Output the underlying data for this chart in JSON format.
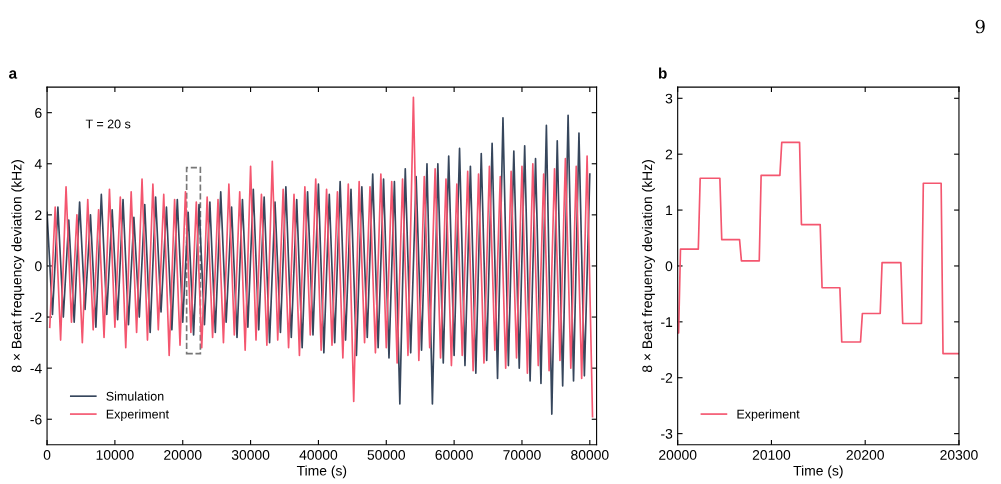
{
  "chart_data": [
    {
      "type": "line",
      "title": "a",
      "xlabel": "Time (s)",
      "ylabel": "8 × Beat frequency deviation (kHz)",
      "annotations": [
        "T = 20 s",
        "9"
      ],
      "xlim": [
        0,
        81000
      ],
      "ylim": [
        -7,
        7
      ],
      "xticks": [
        0,
        10000,
        20000,
        30000,
        40000,
        50000,
        60000,
        70000,
        80000
      ],
      "yticks": [
        -6,
        -4,
        -2,
        0,
        2,
        4,
        6
      ],
      "grid": false,
      "legend": "bottom left",
      "series": [
        {
          "name": "Simulation",
          "color": "#36465c",
          "x": [
            0,
            800,
            1600,
            2400,
            3200,
            4000,
            4800,
            5600,
            6400,
            7200,
            8000,
            8800,
            9600,
            10400,
            11200,
            12000,
            12800,
            13600,
            14400,
            15200,
            16000,
            16800,
            17600,
            18400,
            19200,
            20000,
            20800,
            21600,
            22400,
            23200,
            24000,
            24800,
            25600,
            26400,
            27200,
            28000,
            28800,
            29600,
            30400,
            31200,
            32000,
            32800,
            33600,
            34400,
            35200,
            36000,
            36800,
            37600,
            38400,
            39200,
            40000,
            40800,
            41600,
            42400,
            43200,
            44000,
            44800,
            45600,
            46400,
            47200,
            48000,
            48800,
            49600,
            50400,
            51200,
            52000,
            52800,
            53600,
            54400,
            55200,
            56000,
            56800,
            57600,
            58400,
            59200,
            60000,
            60800,
            61600,
            62400,
            63200,
            64000,
            64800,
            65600,
            66400,
            67200,
            68000,
            68800,
            69600,
            70400,
            71200,
            72000,
            72800,
            73600,
            74400,
            75200,
            76000,
            76800,
            77600,
            78400,
            79200,
            80000
          ],
          "values": [
            2.1,
            -1.9,
            2.3,
            -2.0,
            1.8,
            -2.2,
            2.5,
            -1.7,
            2.0,
            -2.4,
            2.8,
            -1.9,
            2.2,
            -2.1,
            2.6,
            -2.3,
            1.9,
            -2.0,
            2.4,
            -2.6,
            2.7,
            -1.8,
            2.3,
            -2.5,
            2.6,
            -2.2,
            2.1,
            -2.7,
            2.4,
            -2.3,
            2.5,
            -2.6,
            2.9,
            -2.2,
            2.3,
            -2.8,
            2.6,
            -2.4,
            3.0,
            -2.5,
            2.7,
            -3.0,
            2.5,
            -2.6,
            3.1,
            -2.8,
            2.6,
            -3.2,
            2.9,
            -2.7,
            3.2,
            -3.4,
            2.8,
            -3.0,
            3.3,
            -2.9,
            3.0,
            -3.5,
            3.1,
            -2.8,
            3.6,
            -3.2,
            3.4,
            -3.6,
            3.3,
            -5.4,
            3.8,
            -3.4,
            3.5,
            -3.3,
            4.0,
            -5.4,
            4.0,
            -3.8,
            4.3,
            -3.5,
            4.6,
            -3.9,
            3.9,
            -4.2,
            4.4,
            -3.7,
            4.8,
            -4.4,
            5.8,
            -3.9,
            4.5,
            -4.0,
            4.7,
            -4.5,
            4.2,
            -4.6,
            5.5,
            -5.8,
            4.9,
            -4.7,
            5.9,
            -4.5,
            5.2,
            -4.3,
            3.6
          ]
        },
        {
          "name": "Experiment",
          "color": "#f4566f",
          "x": [
            400,
            1200,
            2000,
            2800,
            3600,
            4400,
            5200,
            6000,
            6800,
            7600,
            8400,
            9200,
            10000,
            10800,
            11600,
            12400,
            13200,
            14000,
            14800,
            15600,
            16400,
            17200,
            18000,
            18800,
            19600,
            20400,
            21200,
            22000,
            22800,
            23600,
            24400,
            25200,
            26000,
            26800,
            27600,
            28400,
            29200,
            30000,
            30800,
            31600,
            32400,
            33200,
            34000,
            34800,
            35600,
            36400,
            37200,
            38000,
            38800,
            39600,
            40400,
            41200,
            42000,
            42800,
            43600,
            44400,
            45200,
            46000,
            46800,
            47600,
            48400,
            49200,
            50000,
            50800,
            51600,
            52400,
            53200,
            54000,
            54800,
            55600,
            56400,
            57200,
            58000,
            58800,
            59600,
            60400,
            61200,
            62000,
            62800,
            63600,
            64400,
            65200,
            66000,
            66800,
            67600,
            68400,
            69200,
            70000,
            70800,
            71600,
            72400,
            73200,
            74000,
            74800,
            75600,
            76400,
            77200,
            78000,
            78800,
            79600,
            80400
          ],
          "values": [
            -2.4,
            2.3,
            -2.9,
            3.1,
            -2.2,
            2.0,
            -3.0,
            2.6,
            -2.5,
            2.2,
            -2.8,
            3.0,
            -2.4,
            2.7,
            -3.2,
            2.9,
            -2.6,
            3.4,
            -2.9,
            3.2,
            -2.5,
            2.8,
            -3.5,
            2.6,
            -3.1,
            2.9,
            -2.6,
            2.5,
            -3.2,
            2.7,
            -2.8,
            2.6,
            -3.0,
            3.2,
            -2.7,
            2.9,
            -3.3,
            3.9,
            -2.9,
            2.8,
            -3.1,
            4.1,
            -2.9,
            3.0,
            -3.2,
            2.8,
            -3.5,
            3.1,
            -2.7,
            3.4,
            -3.3,
            3.0,
            -3.1,
            2.9,
            -3.6,
            3.2,
            -5.3,
            3.3,
            -3.0,
            3.1,
            -3.4,
            3.6,
            -3.2,
            3.3,
            -3.8,
            3.4,
            -3.5,
            6.6,
            -3.7,
            3.5,
            -3.2,
            3.8,
            -3.6,
            3.4,
            -3.9,
            3.2,
            -3.5,
            3.7,
            -4.1,
            3.6,
            -3.8,
            3.9,
            -3.3,
            3.5,
            -4.0,
            3.7,
            -3.6,
            3.9,
            -4.2,
            4.0,
            -3.9,
            3.6,
            -4.1,
            3.8,
            -3.7,
            4.2,
            -4.0,
            3.9,
            -4.4,
            4.3,
            -5.9
          ]
        }
      ]
    },
    {
      "type": "line",
      "title": "b",
      "xlabel": "Time (s)",
      "ylabel": "8 × Beat frequency deviation (kHz)",
      "xlim": [
        20000,
        20300
      ],
      "ylim": [
        -3.2,
        3.2
      ],
      "xticks": [
        20000,
        20100,
        20200,
        20300
      ],
      "yticks": [
        -3,
        -2,
        -1,
        0,
        1,
        2,
        3
      ],
      "grid": false,
      "legend": "bottom left",
      "series": [
        {
          "name": "Experiment",
          "color": "#f4566f",
          "x": [
            20000,
            20001,
            20003,
            20022,
            20024,
            20045,
            20047,
            20066,
            20068,
            20087,
            20089,
            20109,
            20111,
            20130,
            20132,
            20152,
            20154,
            20173,
            20175,
            20195,
            20197,
            20216,
            20218,
            20238,
            20240,
            20260,
            20262,
            20281,
            20283,
            20300
          ],
          "values": [
            -1.2,
            -1.2,
            0.3,
            0.3,
            1.57,
            1.57,
            0.47,
            0.47,
            0.09,
            0.09,
            1.62,
            1.62,
            2.21,
            2.21,
            0.74,
            0.74,
            -0.39,
            -0.39,
            -1.36,
            -1.36,
            -0.85,
            -0.85,
            0.06,
            0.06,
            -1.03,
            -1.03,
            1.48,
            1.48,
            -1.57,
            -1.57
          ]
        }
      ]
    }
  ]
}
